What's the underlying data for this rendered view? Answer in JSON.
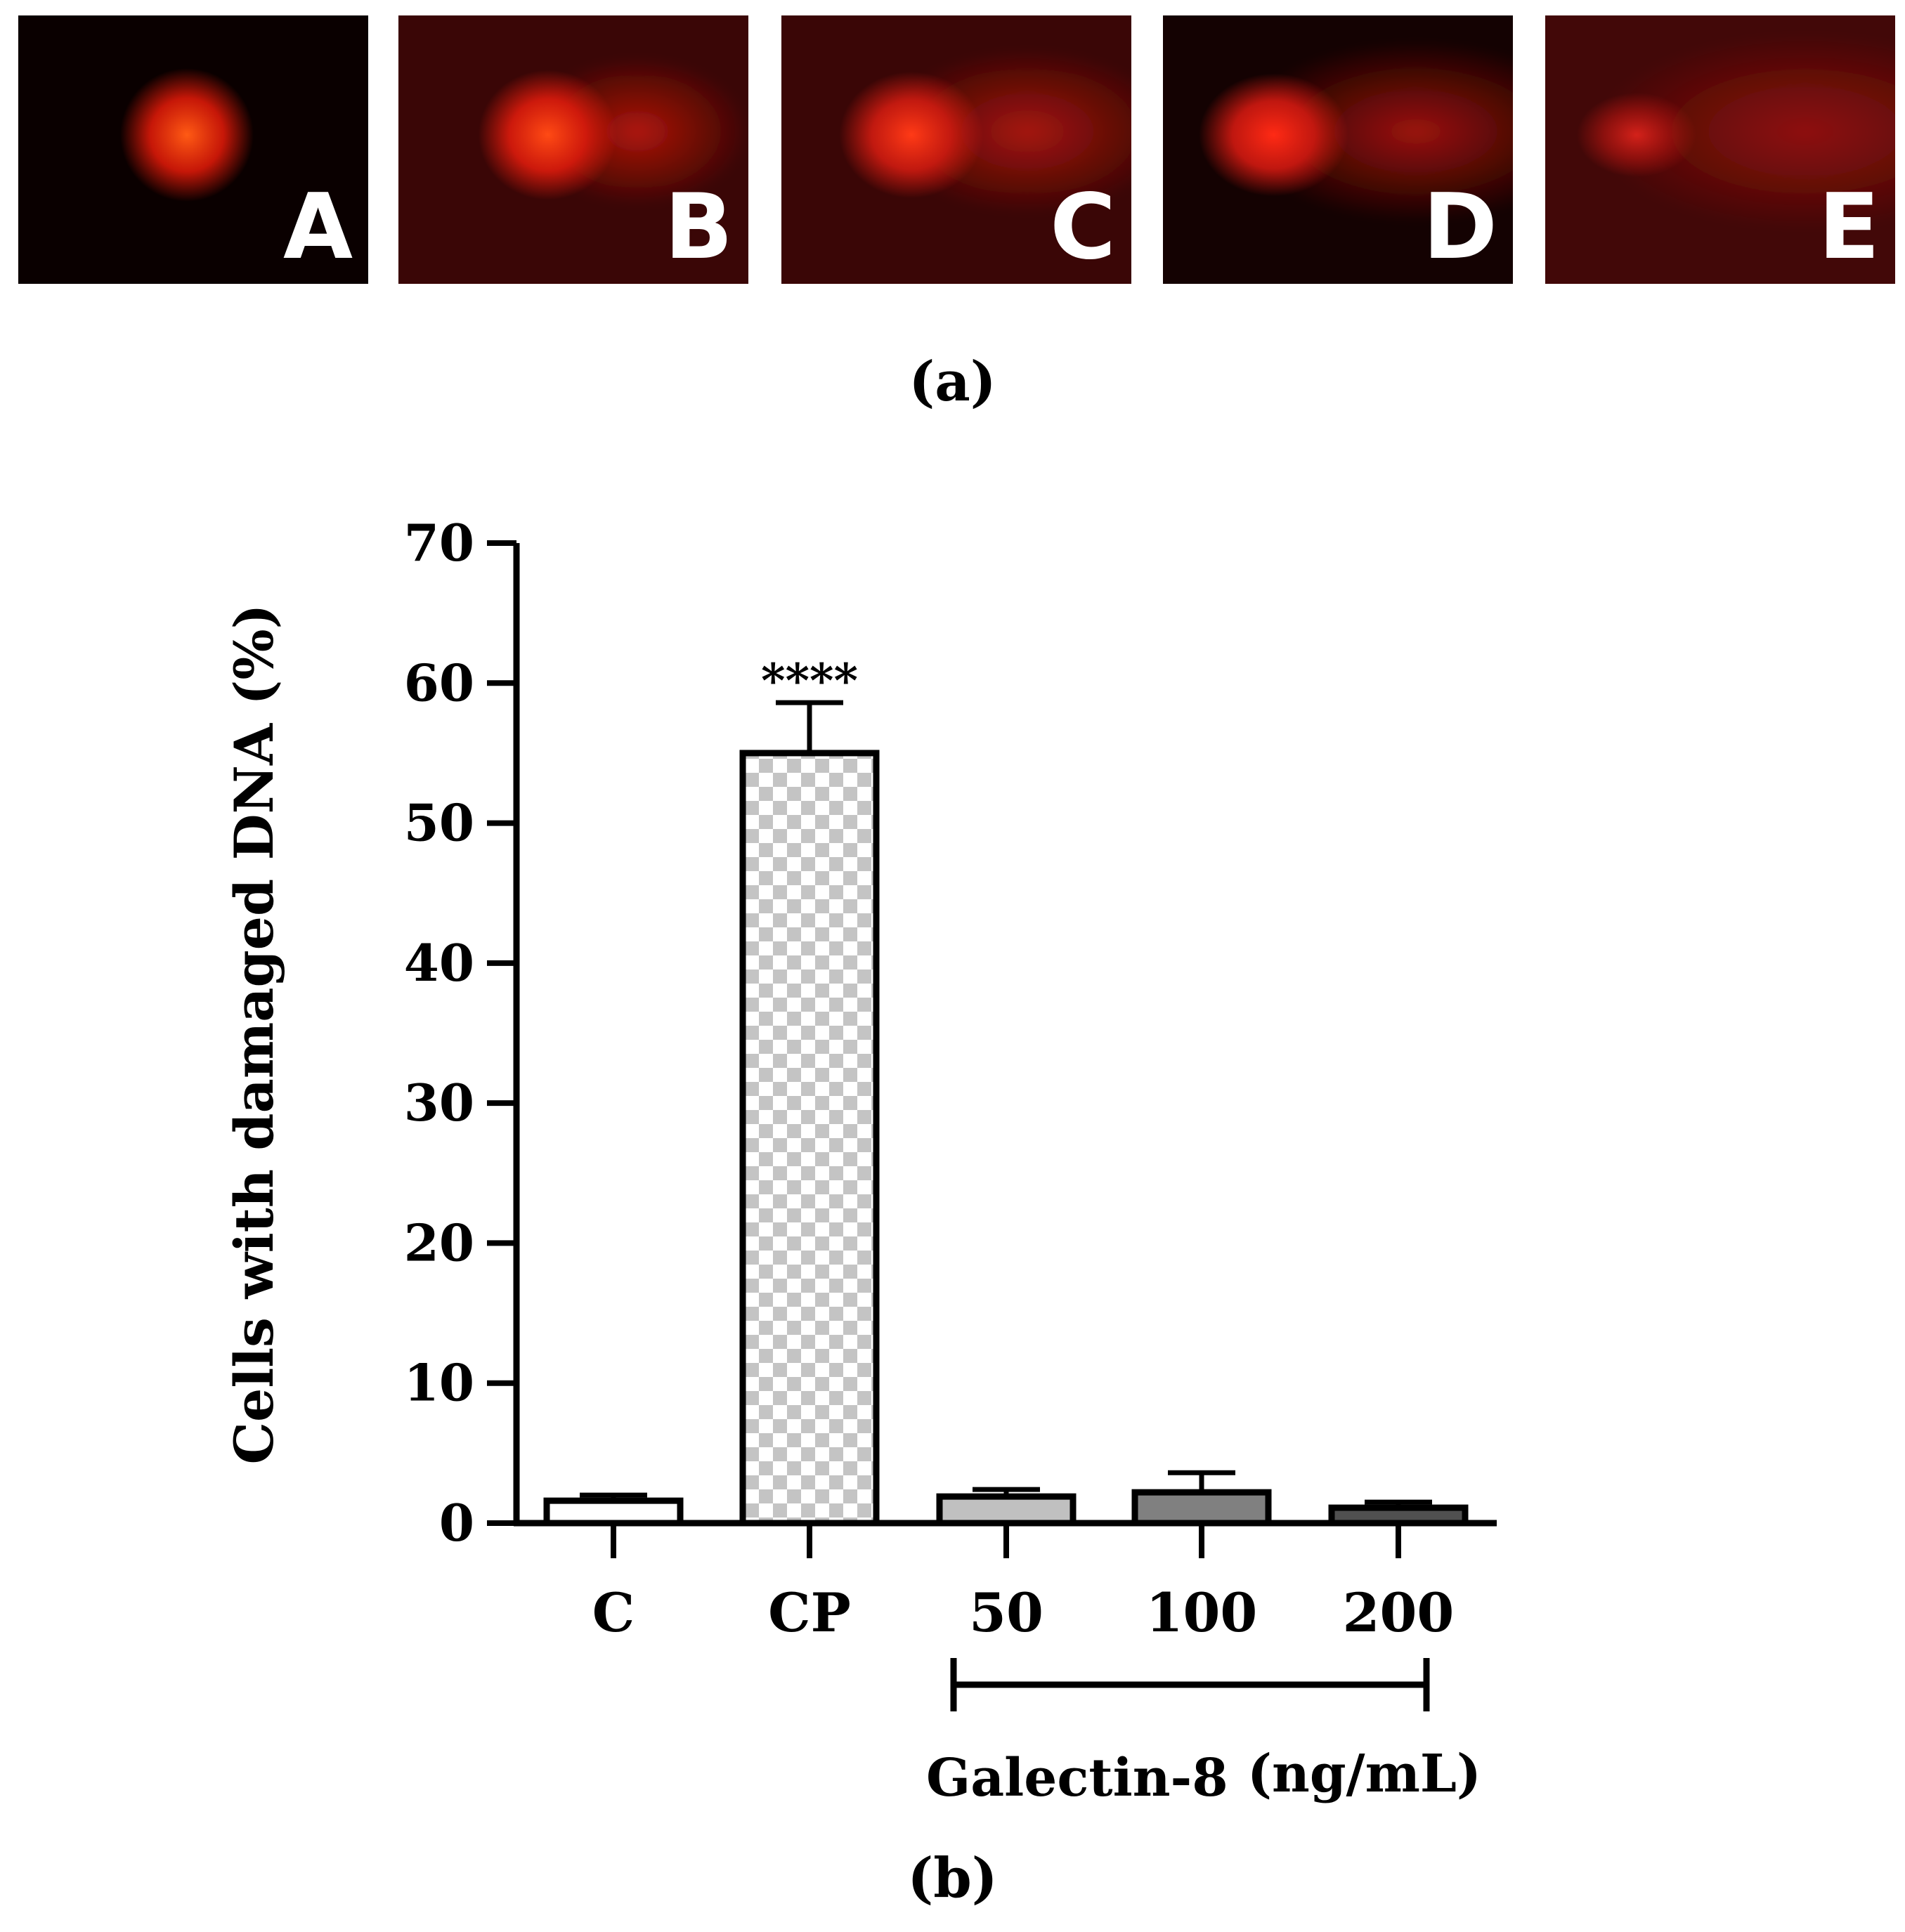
{
  "panel_a": {
    "caption": "(a)",
    "panels": [
      {
        "label": "A",
        "background": "#0a0000",
        "core_color": "#ff5a14",
        "halo_color": "#d01808",
        "tail": 0.0
      },
      {
        "label": "B",
        "background": "#3a0606",
        "core_color": "#ff4a14",
        "halo_color": "#d41a0c",
        "tail": 0.25
      },
      {
        "label": "C",
        "background": "#3a0606",
        "core_color": "#ff3a16",
        "halo_color": "#c81a10",
        "tail": 0.5
      },
      {
        "label": "D",
        "background": "#140202",
        "core_color": "#ff2a14",
        "halo_color": "#c81810",
        "tail": 0.75
      },
      {
        "label": "E",
        "background": "#420808",
        "core_color": "#ff2a20",
        "halo_color": "#a81410",
        "tail": 1.0
      }
    ]
  },
  "panel_b": {
    "caption": "(b)"
  },
  "chart_data": {
    "type": "bar",
    "categories": [
      "C",
      "CP",
      "50",
      "100",
      "200"
    ],
    "values": [
      1.6,
      55.0,
      1.9,
      2.2,
      1.1
    ],
    "errors": [
      0.4,
      3.6,
      0.5,
      1.4,
      0.4
    ],
    "bar_styles": [
      "white",
      "checkered",
      "#c0c0c0",
      "#808080",
      "#505050"
    ],
    "ylabel": "Cells with damaged DNA (%)",
    "ylim": [
      0,
      70
    ],
    "yticks": [
      0,
      10,
      20,
      30,
      40,
      50,
      60,
      70
    ],
    "annotations": [
      {
        "category": "CP",
        "text": "****"
      }
    ],
    "group_bracket": {
      "categories": [
        "50",
        "100",
        "200"
      ],
      "label": "Galectin-8",
      "unit": "(ng/mL)"
    },
    "grid": false,
    "legend": "none"
  }
}
